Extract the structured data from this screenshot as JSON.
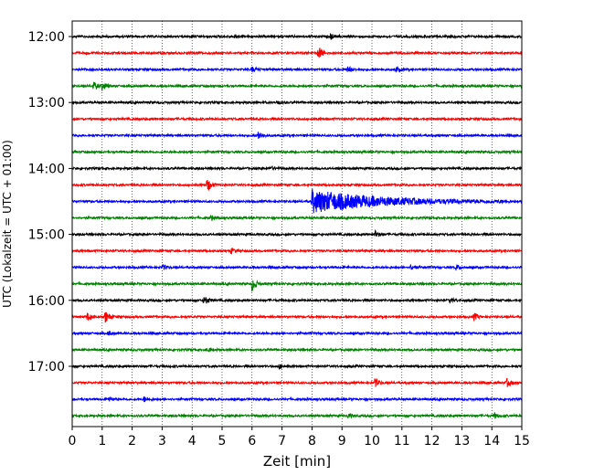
{
  "chart_data": {
    "type": "line",
    "title": "",
    "xlabel": "Zeit  [min]",
    "ylabel": "UTC (Lokalzeit = UTC + 01:00)",
    "xlim": [
      0,
      15
    ],
    "x_ticks": [
      0,
      1,
      2,
      3,
      4,
      5,
      6,
      7,
      8,
      9,
      10,
      11,
      12,
      13,
      14,
      15
    ],
    "y_ticks": [
      "12:00",
      "13:00",
      "14:00",
      "15:00",
      "16:00",
      "17:00"
    ],
    "grid": "vertical dotted",
    "trace_minutes": 15,
    "trace_colors": [
      "#000000",
      "#ff0000",
      "#0000ff",
      "#008000"
    ],
    "traces": [
      {
        "start": "12:00",
        "color": "#000000",
        "events": [
          {
            "t": 5.4,
            "amp": 0.25
          },
          {
            "t": 8.6,
            "amp": 0.3
          }
        ]
      },
      {
        "start": "12:15",
        "color": "#ff0000",
        "events": [
          {
            "t": 8.2,
            "amp": 0.9
          }
        ]
      },
      {
        "start": "12:30",
        "color": "#0000ff",
        "events": [
          {
            "t": 6.0,
            "amp": 0.3
          },
          {
            "t": 9.2,
            "amp": 0.35
          },
          {
            "t": 10.8,
            "amp": 0.3
          }
        ]
      },
      {
        "start": "12:45",
        "color": "#008000",
        "events": [
          {
            "t": 0.7,
            "amp": 0.55
          },
          {
            "t": 1.0,
            "amp": 0.5
          }
        ]
      },
      {
        "start": "13:00",
        "color": "#000000",
        "events": [
          {
            "t": 6.8,
            "amp": 0.25
          }
        ]
      },
      {
        "start": "13:15",
        "color": "#ff0000",
        "events": []
      },
      {
        "start": "13:30",
        "color": "#0000ff",
        "events": [
          {
            "t": 6.2,
            "amp": 0.55
          }
        ]
      },
      {
        "start": "13:45",
        "color": "#008000",
        "events": []
      },
      {
        "start": "14:00",
        "color": "#000000",
        "events": [
          {
            "t": 6.6,
            "amp": 0.25
          }
        ]
      },
      {
        "start": "14:15",
        "color": "#ff0000",
        "events": [
          {
            "t": 4.5,
            "amp": 0.9
          }
        ]
      },
      {
        "start": "14:30",
        "color": "#0000ff",
        "events": [
          {
            "t": 8.0,
            "amp": 1.4,
            "coda": 2.2
          }
        ]
      },
      {
        "start": "14:45",
        "color": "#008000",
        "events": [
          {
            "t": 4.6,
            "amp": 0.3
          }
        ]
      },
      {
        "start": "15:00",
        "color": "#000000",
        "events": [
          {
            "t": 10.1,
            "amp": 0.4
          }
        ]
      },
      {
        "start": "15:15",
        "color": "#ff0000",
        "events": [
          {
            "t": 5.3,
            "amp": 0.35
          }
        ]
      },
      {
        "start": "15:30",
        "color": "#0000ff",
        "events": [
          {
            "t": 3.0,
            "amp": 0.35
          },
          {
            "t": 11.3,
            "amp": 0.35
          },
          {
            "t": 12.8,
            "amp": 0.35
          }
        ]
      },
      {
        "start": "15:45",
        "color": "#008000",
        "events": [
          {
            "t": 6.0,
            "amp": 0.9
          }
        ]
      },
      {
        "start": "16:00",
        "color": "#000000",
        "events": [
          {
            "t": 4.4,
            "amp": 0.6
          },
          {
            "t": 12.6,
            "amp": 0.25
          }
        ]
      },
      {
        "start": "16:15",
        "color": "#ff0000",
        "events": [
          {
            "t": 0.5,
            "amp": 0.5
          },
          {
            "t": 1.1,
            "amp": 0.7
          },
          {
            "t": 13.4,
            "amp": 0.45
          }
        ]
      },
      {
        "start": "16:30",
        "color": "#0000ff",
        "events": [
          {
            "t": 1.2,
            "amp": 0.3
          }
        ]
      },
      {
        "start": "16:45",
        "color": "#008000",
        "events": [
          {
            "t": 4.5,
            "amp": 0.25
          }
        ]
      },
      {
        "start": "17:00",
        "color": "#000000",
        "events": [
          {
            "t": 6.9,
            "amp": 0.25
          }
        ]
      },
      {
        "start": "17:15",
        "color": "#ff0000",
        "events": [
          {
            "t": 10.1,
            "amp": 0.55
          },
          {
            "t": 14.5,
            "amp": 0.5
          }
        ]
      },
      {
        "start": "17:30",
        "color": "#0000ff",
        "events": [
          {
            "t": 1.2,
            "amp": 0.3
          },
          {
            "t": 2.4,
            "amp": 0.35
          },
          {
            "t": 15.0,
            "amp": 0.3
          }
        ]
      },
      {
        "start": "17:45",
        "color": "#008000",
        "events": [
          {
            "t": 9.2,
            "amp": 0.25
          },
          {
            "t": 14.1,
            "amp": 0.3
          }
        ]
      }
    ]
  }
}
